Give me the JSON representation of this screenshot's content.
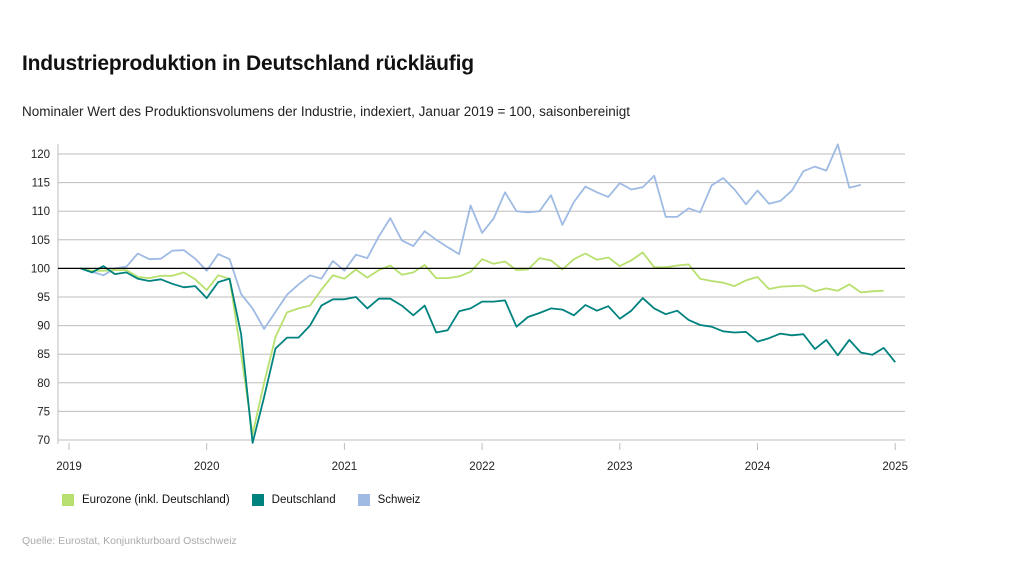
{
  "title": "Industrieproduktion in Deutschland rückläufig",
  "subtitle": "Nominaler Wert des Produktionsvolumens der Industrie, indexiert, Januar 2019 = 100, saisonbereinigt",
  "source": "Quelle: Eurostat, Konjunkturboard Ostschweiz",
  "chart_data": {
    "type": "line",
    "title": "Industrieproduktion in Deutschland rückläufig",
    "xlabel": "",
    "ylabel": "",
    "ylim": [
      70,
      120
    ],
    "yticks": [
      "70",
      "75",
      "80",
      "85",
      "90",
      "95",
      "100",
      "105",
      "110",
      "115",
      "120"
    ],
    "xticks": [
      "2019",
      "2020",
      "2021",
      "2022",
      "2023",
      "2024",
      "2025"
    ],
    "x_start": "2019-01",
    "x_frequency": "monthly",
    "reference_line": 100,
    "grid": "horizontal",
    "legend_position": "bottom-left",
    "series": [
      {
        "name": "Eurozone (inkl. Deutschland)",
        "color": "#b8e06e",
        "values": [
          100,
          99.6,
          99.6,
          99.7,
          99.7,
          98.5,
          98.3,
          98.7,
          98.7,
          99.3,
          98.1,
          96.2,
          98.8,
          98.2,
          85,
          71,
          80,
          88,
          92.3,
          93,
          93.5,
          96.3,
          98.8,
          98.2,
          99.8,
          98.4,
          99.7,
          100.5,
          98.9,
          99.3,
          100.6,
          98.3,
          98.3,
          98.6,
          99.4,
          101.6,
          100.8,
          101.2,
          99.7,
          99.8,
          101.8,
          101.4,
          99.8,
          101.6,
          102.6,
          101.5,
          101.9,
          100.4,
          101.4,
          102.8,
          100.2,
          100.2,
          100.5,
          100.7,
          98.2,
          97.8,
          97.5,
          96.9,
          97.9,
          98.5,
          96.4,
          96.8,
          96.9,
          97,
          96,
          96.5,
          96.1,
          97.2,
          95.8,
          96,
          96.1
        ]
      },
      {
        "name": "Deutschland",
        "color": "#00827f",
        "values": [
          100,
          99.3,
          100.4,
          99,
          99.3,
          98.2,
          97.8,
          98.1,
          97.3,
          96.7,
          96.9,
          94.8,
          97.6,
          98.2,
          88.5,
          69.5,
          77.5,
          86,
          87.9,
          87.9,
          90,
          93.5,
          94.6,
          94.6,
          95,
          93,
          94.7,
          94.7,
          93.5,
          91.8,
          93.5,
          88.8,
          89.2,
          92.5,
          93,
          94.2,
          94.2,
          94.4,
          89.8,
          91.5,
          92.2,
          93,
          92.8,
          91.8,
          93.6,
          92.6,
          93.4,
          91.2,
          92.6,
          94.8,
          93,
          92,
          92.6,
          91,
          90.1,
          89.8,
          89,
          88.8,
          88.9,
          87.2,
          87.8,
          88.6,
          88.3,
          88.5,
          85.9,
          87.5,
          84.8,
          87.5,
          85.3,
          84.9,
          86.1,
          83.6
        ]
      },
      {
        "name": "Schweiz",
        "color": "#9fbbe4",
        "values": [
          100,
          99.4,
          98.8,
          100,
          100.3,
          102.6,
          101.6,
          101.7,
          103.1,
          103.2,
          101.7,
          99.6,
          102.5,
          101.6,
          95.5,
          93,
          89.4,
          92.4,
          95.4,
          97.2,
          98.8,
          98.2,
          101.3,
          99.6,
          102.4,
          101.8,
          105.6,
          108.8,
          104.9,
          103.9,
          106.5,
          105,
          103.7,
          102.5,
          111,
          106.2,
          108.7,
          113.3,
          110,
          109.8,
          110,
          112.8,
          107.6,
          111.6,
          114.3,
          113.3,
          112.5,
          114.9,
          113.8,
          114.2,
          116.2,
          109,
          109,
          110.5,
          109.8,
          114.5,
          115.8,
          113.8,
          111.2,
          113.6,
          111.3,
          111.8,
          113.6,
          117,
          117.8,
          117.1,
          121.7,
          114.1,
          114.6
        ]
      }
    ]
  }
}
